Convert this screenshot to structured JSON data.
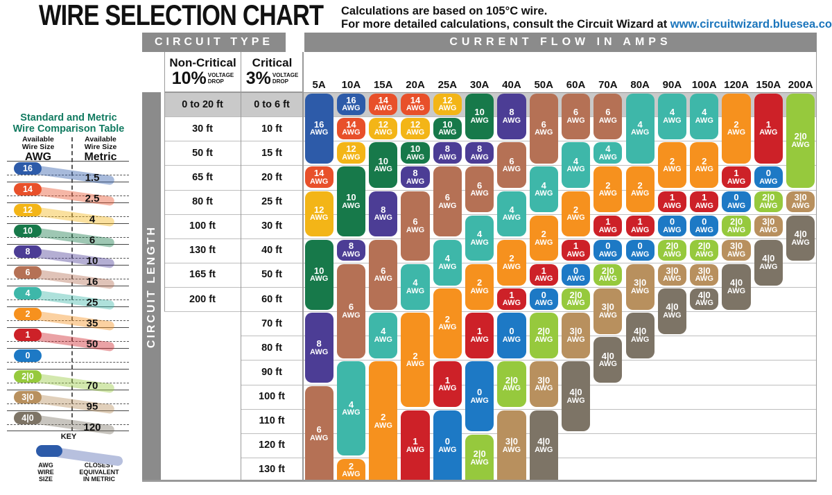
{
  "title": "WIRE SELECTION CHART",
  "subtitle": {
    "line1": "Calculations are based on 105°C wire.",
    "line2_prefix": "For more detailed calculations, consult the Circuit Wizard at ",
    "link": "www.circuitwizard.bluesea.com"
  },
  "awg_colors": {
    "16": "#2d5ba9",
    "14": "#e8502a",
    "12": "#f3b517",
    "10": "#17794a",
    "8": "#4c3d95",
    "6": "#b57155",
    "4": "#3eb7a9",
    "2": "#f6911e",
    "1": "#cd2128",
    "0": "#1d79c5",
    "2|0": "#96c93d",
    "3|0": "#b8905e",
    "4|0": "#7d7466"
  },
  "comparison_table": {
    "title_line1": "Standard and Metric",
    "title_line2": "Wire Comparison Table",
    "left_header": {
      "line1": "Available",
      "line2": "Wire Size",
      "unit": "AWG"
    },
    "right_header": {
      "line1": "Available",
      "line2": "Wire Size",
      "unit": "Metric"
    },
    "rows": [
      {
        "awg": "16",
        "metric": "1.5"
      },
      {
        "awg": "14",
        "metric": "2.5"
      },
      {
        "awg": "12",
        "metric": "4"
      },
      {
        "awg": "10",
        "metric": "6"
      },
      {
        "awg": "8",
        "metric": "10"
      },
      {
        "awg": "6",
        "metric": "16"
      },
      {
        "awg": "4",
        "metric": "25"
      },
      {
        "awg": "2",
        "metric": "35"
      },
      {
        "awg": "1",
        "metric": "50"
      },
      {
        "awg": "0",
        "metric": ""
      },
      {
        "awg": "2|0",
        "metric": "70"
      },
      {
        "awg": "3|0",
        "metric": "95"
      },
      {
        "awg": "4|0",
        "metric": "120"
      }
    ],
    "key": {
      "heading": "KEY",
      "awg_lines": [
        "AWG",
        "WIRE",
        "SIZE"
      ],
      "metric_lines": [
        "CLOSEST",
        "EQUIVALENT",
        "IN METRIC"
      ]
    }
  },
  "main_table": {
    "circuit_type_header": "CIRCUIT TYPE",
    "amps_header": "CURRENT FLOW IN AMPS",
    "non_critical": {
      "name": "Non-Critical",
      "pct": "10%",
      "drop_line1": "VOLTAGE",
      "drop_line2": "DROP"
    },
    "critical": {
      "name": "Critical",
      "pct": "3%",
      "drop_line1": "VOLTAGE",
      "drop_line2": "DROP"
    },
    "circuit_length_label": "CIRCUIT LENGTH",
    "pill_unit": "AWG",
    "length_rows": [
      {
        "non_critical": "0 to 20 ft",
        "critical": "0 to 6 ft"
      },
      {
        "non_critical": "30 ft",
        "critical": "10 ft"
      },
      {
        "non_critical": "50 ft",
        "critical": "15 ft"
      },
      {
        "non_critical": "65 ft",
        "critical": "20 ft"
      },
      {
        "non_critical": "80 ft",
        "critical": "25 ft"
      },
      {
        "non_critical": "100 ft",
        "critical": "30 ft"
      },
      {
        "non_critical": "130 ft",
        "critical": "40 ft"
      },
      {
        "non_critical": "165 ft",
        "critical": "50 ft"
      },
      {
        "non_critical": "200 ft",
        "critical": "60 ft"
      },
      {
        "non_critical": "",
        "critical": "70 ft"
      },
      {
        "non_critical": "",
        "critical": "80 ft"
      },
      {
        "non_critical": "",
        "critical": "90 ft"
      },
      {
        "non_critical": "",
        "critical": "100 ft"
      },
      {
        "non_critical": "",
        "critical": "110 ft"
      },
      {
        "non_critical": "",
        "critical": "120 ft"
      },
      {
        "non_critical": "",
        "critical": "130 ft"
      }
    ],
    "amp_columns": [
      {
        "label": "5A",
        "segments": [
          {
            "awg": "16",
            "start": 1,
            "end": 3
          },
          {
            "awg": "14",
            "start": 4,
            "end": 4
          },
          {
            "awg": "12",
            "start": 5,
            "end": 6
          },
          {
            "awg": "10",
            "start": 7,
            "end": 9
          },
          {
            "awg": "8",
            "start": 10,
            "end": 12
          },
          {
            "awg": "6",
            "start": 13,
            "end": 16
          }
        ]
      },
      {
        "label": "10A",
        "segments": [
          {
            "awg": "16",
            "start": 1,
            "end": 1
          },
          {
            "awg": "14",
            "start": 2,
            "end": 2
          },
          {
            "awg": "12",
            "start": 3,
            "end": 3
          },
          {
            "awg": "10",
            "start": 4,
            "end": 6
          },
          {
            "awg": "8",
            "start": 7,
            "end": 7
          },
          {
            "awg": "6",
            "start": 8,
            "end": 11
          },
          {
            "awg": "4",
            "start": 12,
            "end": 15
          },
          {
            "awg": "2",
            "start": 16,
            "end": 16
          }
        ]
      },
      {
        "label": "15A",
        "segments": [
          {
            "awg": "14",
            "start": 1,
            "end": 1
          },
          {
            "awg": "12",
            "start": 2,
            "end": 2
          },
          {
            "awg": "10",
            "start": 3,
            "end": 4
          },
          {
            "awg": "8",
            "start": 5,
            "end": 6
          },
          {
            "awg": "6",
            "start": 7,
            "end": 9
          },
          {
            "awg": "4",
            "start": 10,
            "end": 11
          },
          {
            "awg": "2",
            "start": 12,
            "end": 16
          }
        ]
      },
      {
        "label": "20A",
        "segments": [
          {
            "awg": "14",
            "start": 1,
            "end": 1
          },
          {
            "awg": "12",
            "start": 2,
            "end": 2
          },
          {
            "awg": "10",
            "start": 3,
            "end": 3
          },
          {
            "awg": "8",
            "start": 4,
            "end": 4
          },
          {
            "awg": "6",
            "start": 5,
            "end": 7
          },
          {
            "awg": "4",
            "start": 8,
            "end": 9
          },
          {
            "awg": "2",
            "start": 10,
            "end": 13
          },
          {
            "awg": "1",
            "start": 14,
            "end": 16
          }
        ]
      },
      {
        "label": "25A",
        "segments": [
          {
            "awg": "12",
            "start": 1,
            "end": 1
          },
          {
            "awg": "10",
            "start": 2,
            "end": 2
          },
          {
            "awg": "8",
            "start": 3,
            "end": 3
          },
          {
            "awg": "6",
            "start": 4,
            "end": 6
          },
          {
            "awg": "4",
            "start": 7,
            "end": 8
          },
          {
            "awg": "2",
            "start": 9,
            "end": 11
          },
          {
            "awg": "1",
            "start": 12,
            "end": 13
          },
          {
            "awg": "0",
            "start": 14,
            "end": 16
          }
        ]
      },
      {
        "label": "30A",
        "segments": [
          {
            "awg": "10",
            "start": 1,
            "end": 2
          },
          {
            "awg": "8",
            "start": 3,
            "end": 3
          },
          {
            "awg": "6",
            "start": 4,
            "end": 5
          },
          {
            "awg": "4",
            "start": 6,
            "end": 7
          },
          {
            "awg": "2",
            "start": 8,
            "end": 9
          },
          {
            "awg": "1",
            "start": 10,
            "end": 11
          },
          {
            "awg": "0",
            "start": 12,
            "end": 14
          },
          {
            "awg": "2|0",
            "start": 15,
            "end": 16
          }
        ]
      },
      {
        "label": "40A",
        "segments": [
          {
            "awg": "8",
            "start": 1,
            "end": 2
          },
          {
            "awg": "6",
            "start": 3,
            "end": 4
          },
          {
            "awg": "4",
            "start": 5,
            "end": 6
          },
          {
            "awg": "2",
            "start": 7,
            "end": 8
          },
          {
            "awg": "1",
            "start": 9,
            "end": 9
          },
          {
            "awg": "0",
            "start": 10,
            "end": 11
          },
          {
            "awg": "2|0",
            "start": 12,
            "end": 13
          },
          {
            "awg": "3|0",
            "start": 14,
            "end": 16
          }
        ]
      },
      {
        "label": "50A",
        "segments": [
          {
            "awg": "6",
            "start": 1,
            "end": 3
          },
          {
            "awg": "4",
            "start": 4,
            "end": 5
          },
          {
            "awg": "2",
            "start": 6,
            "end": 7
          },
          {
            "awg": "1",
            "start": 8,
            "end": 8
          },
          {
            "awg": "0",
            "start": 9,
            "end": 9
          },
          {
            "awg": "2|0",
            "start": 10,
            "end": 11
          },
          {
            "awg": "3|0",
            "start": 12,
            "end": 13
          },
          {
            "awg": "4|0",
            "start": 14,
            "end": 16
          }
        ]
      },
      {
        "label": "60A",
        "segments": [
          {
            "awg": "6",
            "start": 1,
            "end": 2
          },
          {
            "awg": "4",
            "start": 3,
            "end": 4
          },
          {
            "awg": "2",
            "start": 5,
            "end": 6
          },
          {
            "awg": "1",
            "start": 7,
            "end": 7
          },
          {
            "awg": "0",
            "start": 8,
            "end": 8
          },
          {
            "awg": "2|0",
            "start": 9,
            "end": 9
          },
          {
            "awg": "3|0",
            "start": 10,
            "end": 11
          },
          {
            "awg": "4|0",
            "start": 12,
            "end": 14
          }
        ]
      },
      {
        "label": "70A",
        "segments": [
          {
            "awg": "6",
            "start": 1,
            "end": 2
          },
          {
            "awg": "4",
            "start": 3,
            "end": 3
          },
          {
            "awg": "2",
            "start": 4,
            "end": 5
          },
          {
            "awg": "1",
            "start": 6,
            "end": 6
          },
          {
            "awg": "0",
            "start": 7,
            "end": 7
          },
          {
            "awg": "2|0",
            "start": 8,
            "end": 8
          },
          {
            "awg": "3|0",
            "start": 9,
            "end": 10
          },
          {
            "awg": "4|0",
            "start": 11,
            "end": 12
          }
        ]
      },
      {
        "label": "80A",
        "segments": [
          {
            "awg": "4",
            "start": 1,
            "end": 3
          },
          {
            "awg": "2",
            "start": 4,
            "end": 5
          },
          {
            "awg": "1",
            "start": 6,
            "end": 6
          },
          {
            "awg": "0",
            "start": 7,
            "end": 7
          },
          {
            "awg": "3|0",
            "start": 8,
            "end": 9
          },
          {
            "awg": "4|0",
            "start": 10,
            "end": 11
          }
        ]
      },
      {
        "label": "90A",
        "segments": [
          {
            "awg": "4",
            "start": 1,
            "end": 2
          },
          {
            "awg": "2",
            "start": 3,
            "end": 4
          },
          {
            "awg": "1",
            "start": 5,
            "end": 5
          },
          {
            "awg": "0",
            "start": 6,
            "end": 6
          },
          {
            "awg": "2|0",
            "start": 7,
            "end": 7
          },
          {
            "awg": "3|0",
            "start": 8,
            "end": 8
          },
          {
            "awg": "4|0",
            "start": 9,
            "end": 10
          }
        ]
      },
      {
        "label": "100A",
        "segments": [
          {
            "awg": "4",
            "start": 1,
            "end": 2
          },
          {
            "awg": "2",
            "start": 3,
            "end": 4
          },
          {
            "awg": "1",
            "start": 5,
            "end": 5
          },
          {
            "awg": "0",
            "start": 6,
            "end": 6
          },
          {
            "awg": "2|0",
            "start": 7,
            "end": 7
          },
          {
            "awg": "3|0",
            "start": 8,
            "end": 8
          },
          {
            "awg": "4|0",
            "start": 9,
            "end": 9
          }
        ]
      },
      {
        "label": "120A",
        "segments": [
          {
            "awg": "2",
            "start": 1,
            "end": 3
          },
          {
            "awg": "1",
            "start": 4,
            "end": 4
          },
          {
            "awg": "0",
            "start": 5,
            "end": 5
          },
          {
            "awg": "2|0",
            "start": 6,
            "end": 6
          },
          {
            "awg": "3|0",
            "start": 7,
            "end": 7
          },
          {
            "awg": "4|0",
            "start": 8,
            "end": 9
          }
        ]
      },
      {
        "label": "150A",
        "segments": [
          {
            "awg": "1",
            "start": 1,
            "end": 3
          },
          {
            "awg": "0",
            "start": 4,
            "end": 4
          },
          {
            "awg": "2|0",
            "start": 5,
            "end": 5
          },
          {
            "awg": "3|0",
            "start": 6,
            "end": 6
          },
          {
            "awg": "4|0",
            "start": 7,
            "end": 8
          }
        ]
      },
      {
        "label": "200A",
        "segments": [
          {
            "awg": "2|0",
            "start": 1,
            "end": 4
          },
          {
            "awg": "3|0",
            "start": 5,
            "end": 5
          },
          {
            "awg": "4|0",
            "start": 6,
            "end": 7
          }
        ]
      }
    ]
  },
  "chart_data": {
    "type": "table",
    "title": "WIRE SELECTION CHART",
    "columns_amps": [
      "5A",
      "10A",
      "15A",
      "20A",
      "25A",
      "30A",
      "40A",
      "50A",
      "60A",
      "70A",
      "80A",
      "90A",
      "100A",
      "120A",
      "150A",
      "200A"
    ],
    "rows_length_critical_3pct": [
      "0 to 6 ft",
      "10 ft",
      "15 ft",
      "20 ft",
      "25 ft",
      "30 ft",
      "40 ft",
      "50 ft",
      "60 ft",
      "70 ft",
      "80 ft",
      "90 ft",
      "100 ft",
      "110 ft",
      "120 ft",
      "130 ft"
    ],
    "rows_length_non_critical_10pct": [
      "0 to 20 ft",
      "30 ft",
      "50 ft",
      "65 ft",
      "80 ft",
      "100 ft",
      "130 ft",
      "165 ft",
      "200 ft",
      "",
      "",
      "",
      "",
      "",
      "",
      ""
    ],
    "values_awg": [
      [
        "16",
        "16",
        "14",
        "14",
        "12",
        "10",
        "8",
        "6",
        "6",
        "6",
        "4",
        "4",
        "4",
        "2",
        "1",
        "2|0"
      ],
      [
        "16",
        "14",
        "12",
        "12",
        "10",
        "10",
        "8",
        "6",
        "6",
        "6",
        "4",
        "4",
        "4",
        "2",
        "1",
        "2|0"
      ],
      [
        "16",
        "12",
        "10",
        "10",
        "8",
        "8",
        "6",
        "6",
        "4",
        "4",
        "4",
        "2",
        "2",
        "2",
        "1",
        "2|0"
      ],
      [
        "14",
        "10",
        "10",
        "8",
        "6",
        "6",
        "6",
        "4",
        "4",
        "2",
        "2",
        "2",
        "2",
        "1",
        "0",
        "2|0"
      ],
      [
        "12",
        "10",
        "8",
        "6",
        "6",
        "6",
        "4",
        "4",
        "2",
        "2",
        "2",
        "1",
        "1",
        "0",
        "2|0",
        "3|0"
      ],
      [
        "12",
        "10",
        "8",
        "6",
        "6",
        "4",
        "4",
        "2",
        "2",
        "1",
        "1",
        "0",
        "0",
        "2|0",
        "3|0",
        "4|0"
      ],
      [
        "10",
        "8",
        "6",
        "6",
        "4",
        "4",
        "2",
        "2",
        "1",
        "0",
        "0",
        "2|0",
        "2|0",
        "3|0",
        "4|0",
        "4|0"
      ],
      [
        "10",
        "6",
        "6",
        "4",
        "4",
        "2",
        "2",
        "1",
        "0",
        "2|0",
        "3|0",
        "3|0",
        "3|0",
        "4|0",
        "4|0",
        ""
      ],
      [
        "10",
        "6",
        "6",
        "4",
        "2",
        "2",
        "1",
        "0",
        "2|0",
        "3|0",
        "3|0",
        "4|0",
        "4|0",
        "4|0",
        "",
        ""
      ],
      [
        "8",
        "6",
        "4",
        "2",
        "2",
        "1",
        "0",
        "2|0",
        "3|0",
        "3|0",
        "4|0",
        "4|0",
        "",
        "",
        "",
        ""
      ],
      [
        "8",
        "6",
        "4",
        "2",
        "2",
        "1",
        "0",
        "2|0",
        "3|0",
        "4|0",
        "4|0",
        "",
        "",
        "",
        "",
        ""
      ],
      [
        "8",
        "4",
        "2",
        "2",
        "1",
        "0",
        "2|0",
        "3|0",
        "4|0",
        "4|0",
        "",
        "",
        "",
        "",
        "",
        ""
      ],
      [
        "6",
        "4",
        "2",
        "2",
        "1",
        "0",
        "2|0",
        "3|0",
        "4|0",
        "",
        "",
        "",
        "",
        "",
        "",
        ""
      ],
      [
        "6",
        "4",
        "2",
        "1",
        "0",
        "0",
        "3|0",
        "4|0",
        "4|0",
        "",
        "",
        "",
        "",
        "",
        "",
        ""
      ],
      [
        "6",
        "4",
        "2",
        "1",
        "0",
        "2|0",
        "3|0",
        "4|0",
        "",
        "",
        "",
        "",
        "",
        "",
        "",
        ""
      ],
      [
        "6",
        "2",
        "2",
        "1",
        "0",
        "2|0",
        "3|0",
        "4|0",
        "",
        "",
        "",
        "",
        "",
        "",
        "",
        ""
      ]
    ]
  }
}
